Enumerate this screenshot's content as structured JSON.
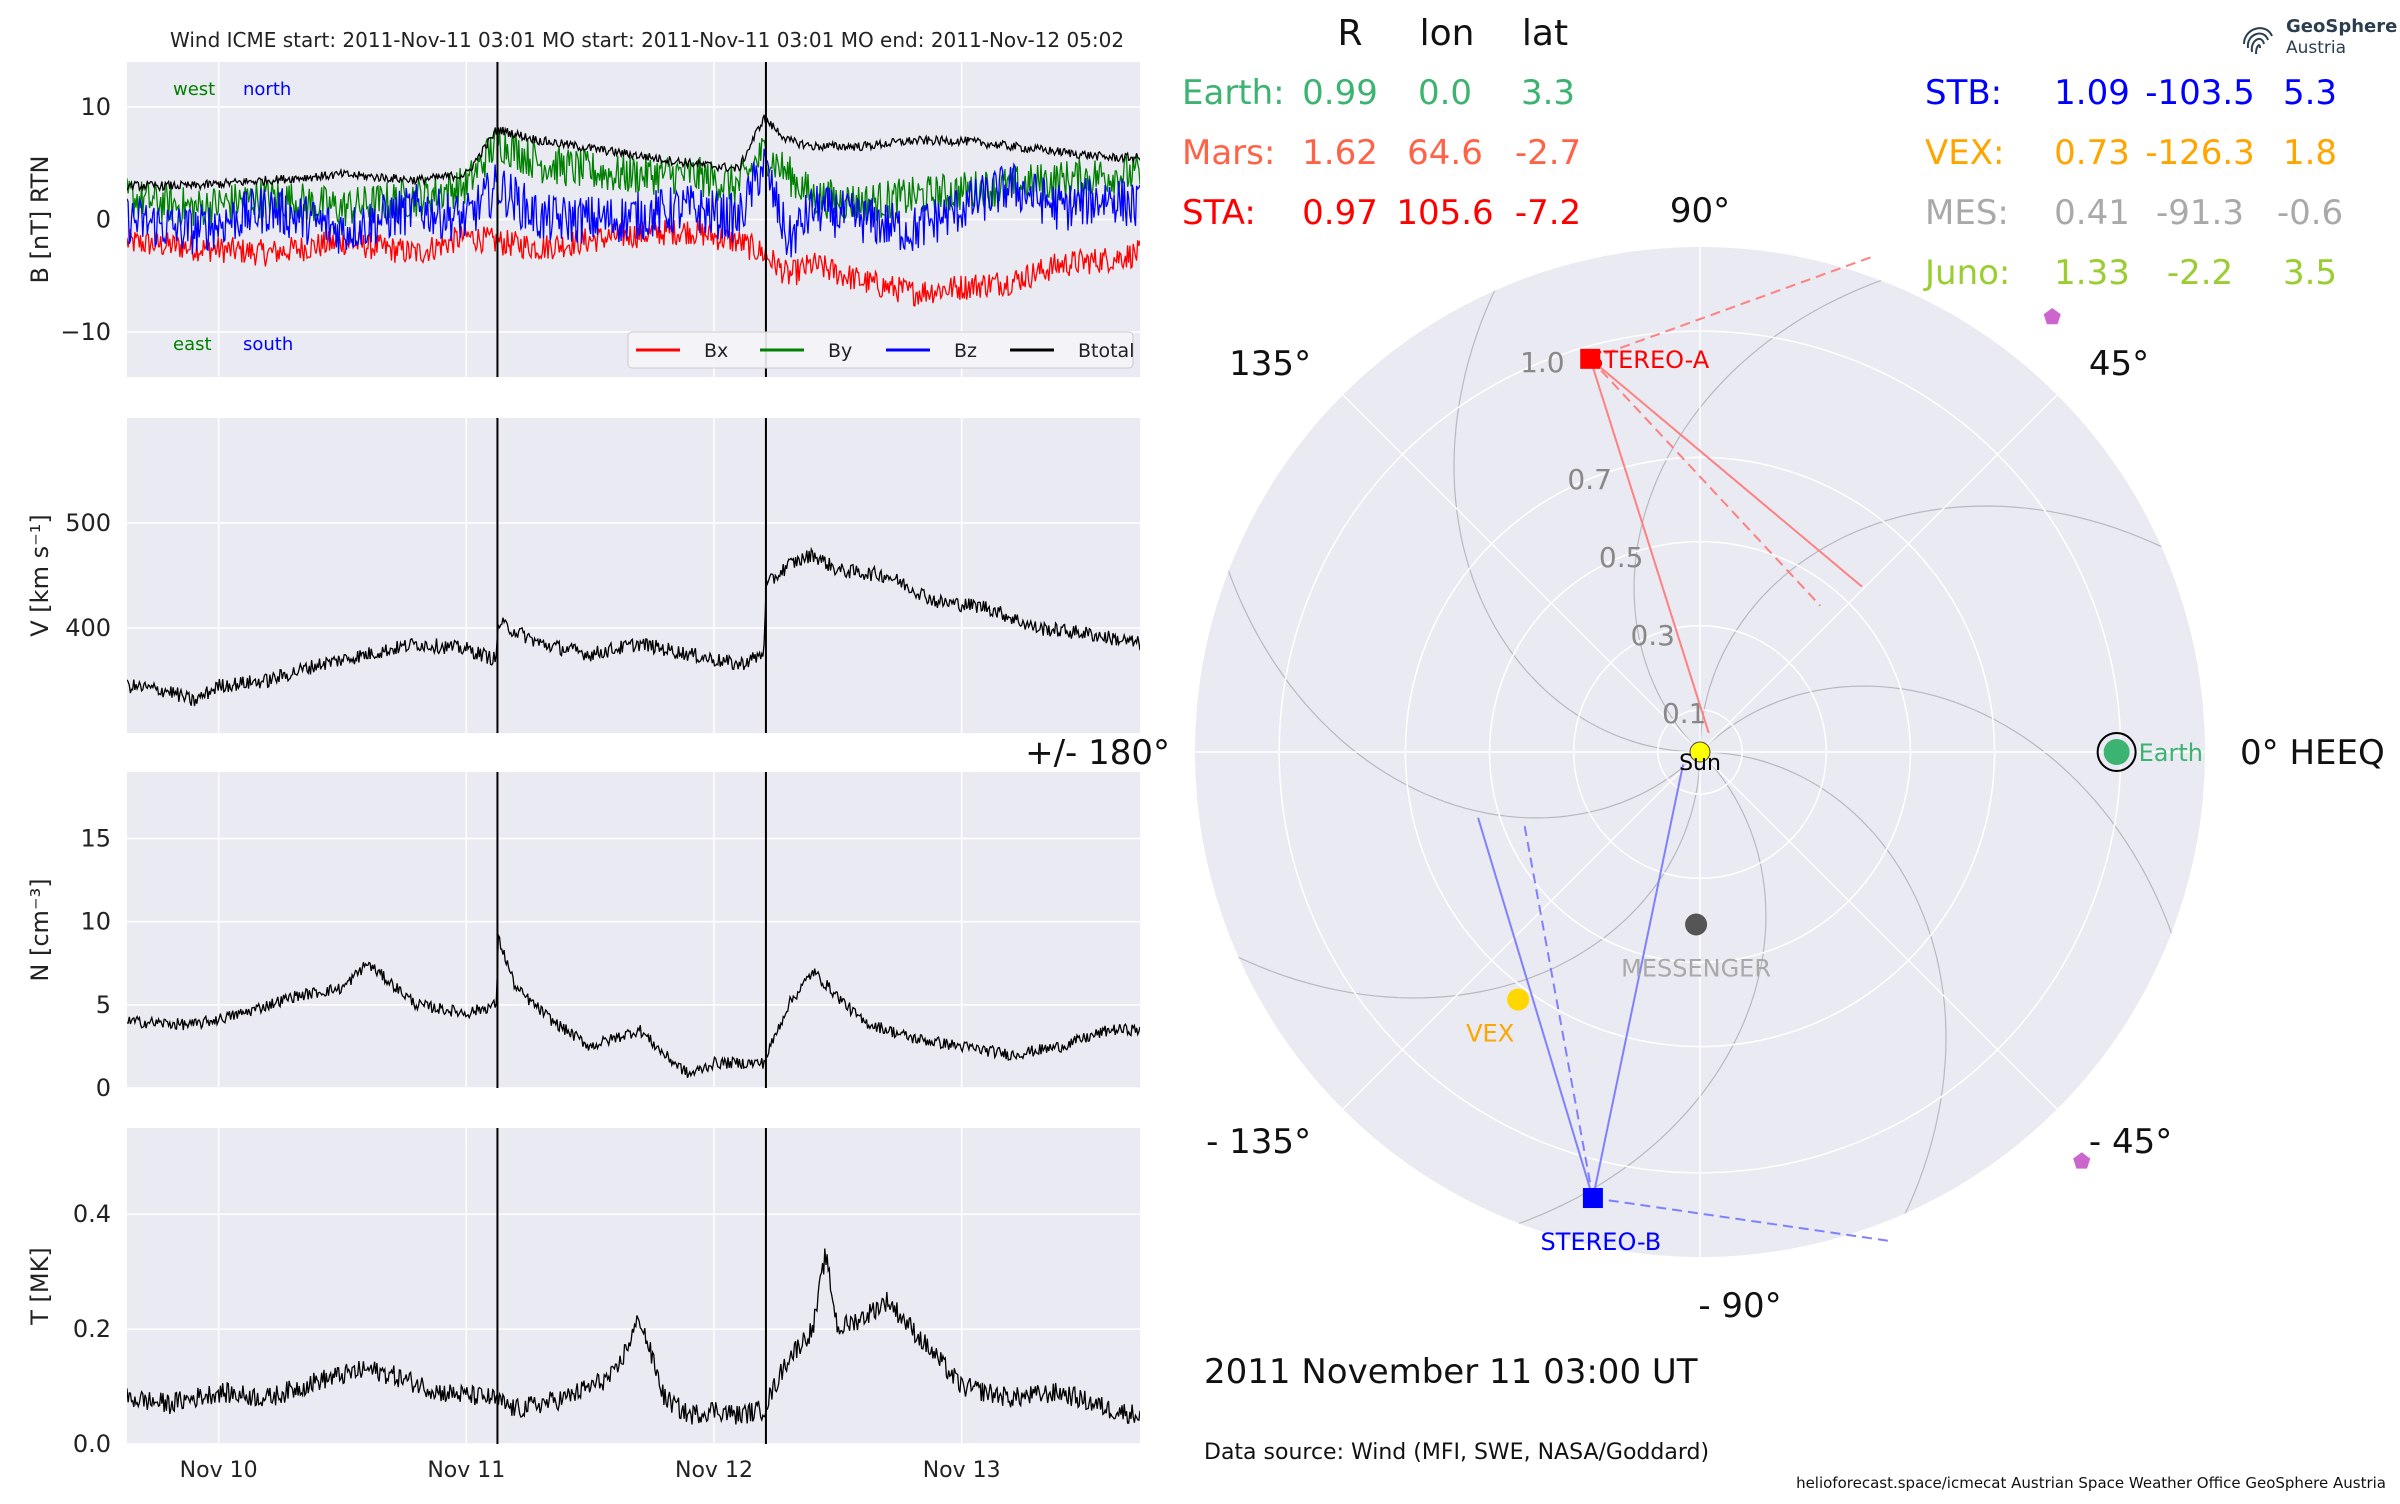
{
  "plot_title": "Wind    ICME start: 2011-Nov-11 03:01   MO start: 2011-Nov-11 03:01   MO end: 2011-Nov-12 05:02",
  "position_date": "2011 November 11  03:00 UT",
  "data_source": "Data source: Wind (MFI, SWE, NASA/Goddard)",
  "footer": "helioforecast.space/icmecat   Austrian Space Weather Office   GeoSphere Austria",
  "logo": {
    "name": "GeoSphere",
    "sub": "Austria",
    "icon": "geosphere-fingerprint-icon"
  },
  "colors": {
    "bx": "#ff0000",
    "by": "#008000",
    "bz": "#0000ff",
    "btotal": "#000000",
    "panel_bg": "#eaeaf2"
  },
  "chart_data": [
    {
      "type": "line",
      "ylabel": "B [nT] RTN",
      "ylim": [
        -14,
        14
      ],
      "yticks": [
        "10",
        "0",
        "−10"
      ],
      "yticks_values": [
        10,
        0,
        -10
      ],
      "annotations": {
        "west": "west",
        "north": "north",
        "east": "east",
        "south": "south"
      },
      "legend": {
        "position": "bottom-right",
        "entries": [
          "Bx",
          "By",
          "Bz",
          "Btotal"
        ]
      },
      "xlim_days": [
        9.63,
        13.72
      ],
      "event_lines": [
        "2011-11-11 03:01",
        "2011-11-12 05:02"
      ],
      "series": [
        {
          "name": "Bx",
          "x": [
            9.63,
            9.9,
            10.2,
            10.5,
            10.8,
            11.0,
            11.125,
            11.3,
            11.6,
            11.9,
            12.1,
            12.2,
            12.3,
            12.4,
            12.6,
            12.8,
            13.0,
            13.2,
            13.4,
            13.6,
            13.72
          ],
          "values": [
            -2,
            -2.5,
            -3,
            -2,
            -3,
            -1.5,
            -2,
            -2.5,
            -1.5,
            -1,
            -2,
            -3,
            -5,
            -4,
            -5.5,
            -6.5,
            -6,
            -5.5,
            -4,
            -3.5,
            -3
          ]
        },
        {
          "name": "By",
          "x": [
            9.63,
            9.9,
            10.2,
            10.5,
            10.8,
            11.0,
            11.125,
            11.3,
            11.6,
            11.9,
            12.1,
            12.2,
            12.3,
            12.4,
            12.6,
            12.8,
            13.0,
            13.2,
            13.4,
            13.6,
            13.72
          ],
          "values": [
            2,
            1,
            2,
            1,
            2,
            3,
            7,
            5,
            4,
            4,
            3,
            6,
            4,
            2,
            1.5,
            2,
            2.5,
            3,
            3.5,
            4,
            4
          ]
        },
        {
          "name": "Bz",
          "x": [
            9.63,
            9.9,
            10.2,
            10.5,
            10.8,
            11.0,
            11.125,
            11.3,
            11.6,
            11.9,
            12.1,
            12.2,
            12.3,
            12.4,
            12.6,
            12.8,
            13.0,
            13.2,
            13.4,
            13.6,
            13.72
          ],
          "values": [
            0,
            -1,
            1,
            -1,
            1,
            0,
            3,
            0,
            0,
            1,
            0,
            5,
            -2,
            1,
            0,
            -1,
            1,
            3,
            1,
            2,
            1
          ]
        },
        {
          "name": "Btotal",
          "x": [
            9.63,
            9.9,
            10.2,
            10.5,
            10.8,
            11.0,
            11.125,
            11.3,
            11.6,
            11.9,
            12.1,
            12.2,
            12.3,
            12.4,
            12.6,
            12.8,
            13.0,
            13.2,
            13.4,
            13.6,
            13.72
          ],
          "values": [
            3,
            3,
            3.5,
            4,
            3.5,
            4,
            8,
            7,
            6,
            5,
            4.5,
            9,
            7,
            6.5,
            6.5,
            7,
            7,
            6.5,
            6,
            5.5,
            5.5
          ]
        }
      ]
    },
    {
      "type": "line",
      "ylabel": "V [km s⁻¹]",
      "ylim": [
        300,
        600
      ],
      "yticks": [
        "500",
        "400"
      ],
      "yticks_values": [
        500,
        400
      ],
      "series": [
        {
          "name": "V",
          "x": [
            9.63,
            9.8,
            9.9,
            10.0,
            10.2,
            10.4,
            10.6,
            10.8,
            11.0,
            11.12,
            11.13,
            11.3,
            11.5,
            11.7,
            11.9,
            12.1,
            12.2,
            12.21,
            12.3,
            12.4,
            12.5,
            12.7,
            12.9,
            13.1,
            13.3,
            13.5,
            13.72
          ],
          "values": [
            345,
            340,
            330,
            345,
            350,
            365,
            375,
            385,
            380,
            370,
            405,
            385,
            375,
            385,
            375,
            365,
            375,
            440,
            460,
            470,
            455,
            450,
            425,
            420,
            400,
            395,
            385
          ]
        }
      ]
    },
    {
      "type": "line",
      "ylabel": "N [cm⁻³]",
      "ylim": [
        0,
        19
      ],
      "yticks": [
        "15",
        "10",
        "5",
        "0"
      ],
      "yticks_values": [
        15,
        10,
        5,
        0
      ],
      "series": [
        {
          "name": "N",
          "x": [
            9.63,
            9.9,
            10.1,
            10.3,
            10.5,
            10.6,
            10.8,
            11.0,
            11.12,
            11.13,
            11.2,
            11.35,
            11.5,
            11.7,
            11.8,
            11.9,
            12.0,
            12.1,
            12.2,
            12.3,
            12.4,
            12.6,
            12.8,
            13.0,
            13.2,
            13.4,
            13.6,
            13.72
          ],
          "values": [
            4,
            3.8,
            4.5,
            5.5,
            6,
            7.5,
            5,
            4.5,
            5,
            9,
            6,
            4,
            2.5,
            3.5,
            2,
            0.8,
            1.5,
            1.5,
            1.5,
            5,
            7,
            4,
            3,
            2.5,
            2,
            2.5,
            3.5,
            3.5
          ]
        }
      ]
    },
    {
      "type": "line",
      "ylabel": "T [MK]",
      "ylim": [
        0,
        0.55
      ],
      "yticks": [
        "0.4",
        "0.2",
        "0.0"
      ],
      "yticks_values": [
        0.4,
        0.2,
        0.0
      ],
      "xticks": [
        "Nov 10",
        "Nov 11",
        "Nov 12",
        "Nov 13"
      ],
      "xticks_values": [
        10,
        11,
        12,
        13
      ],
      "series": [
        {
          "name": "T",
          "x": [
            9.63,
            9.8,
            10.0,
            10.2,
            10.4,
            10.6,
            10.7,
            10.9,
            11.1,
            11.2,
            11.4,
            11.6,
            11.7,
            11.75,
            11.8,
            11.9,
            12.0,
            12.1,
            12.2,
            12.3,
            12.4,
            12.45,
            12.5,
            12.6,
            12.7,
            12.8,
            13.0,
            13.2,
            13.4,
            13.6,
            13.72
          ],
          "values": [
            0.08,
            0.07,
            0.09,
            0.08,
            0.11,
            0.13,
            0.12,
            0.09,
            0.08,
            0.06,
            0.08,
            0.12,
            0.22,
            0.15,
            0.08,
            0.05,
            0.06,
            0.05,
            0.06,
            0.15,
            0.2,
            0.33,
            0.2,
            0.22,
            0.25,
            0.2,
            0.1,
            0.08,
            0.09,
            0.06,
            0.05
          ]
        }
      ]
    },
    {
      "type": "scatter",
      "subtype": "polar",
      "header": {
        "r": "R",
        "lon": "lon",
        "lat": "lat"
      },
      "angle_labels": [
        {
          "angle": 0,
          "text": "0° HEEQ"
        },
        {
          "angle": 45,
          "text": "45°"
        },
        {
          "angle": 90,
          "text": "90°"
        },
        {
          "angle": 135,
          "text": "135°"
        },
        {
          "angle": 180,
          "text": "+/- 180°"
        },
        {
          "angle": -135,
          "text": "- 135°"
        },
        {
          "angle": -90,
          "text": "- 90°"
        },
        {
          "angle": -45,
          "text": "- 45°"
        }
      ],
      "radial_ticks": [
        "0.1",
        "0.3",
        "0.5",
        "0.7",
        "1.0"
      ],
      "radial_tick_values": [
        0.1,
        0.3,
        0.5,
        0.7,
        1.0
      ],
      "rmax": 1.2,
      "sun_label": "Sun",
      "bodies": [
        {
          "name": "Earth",
          "label": "Earth",
          "r": 0.99,
          "lon": 0.0,
          "color": "#3cb371",
          "marker": "circle"
        },
        {
          "name": "STEREO-A",
          "label": "STEREO-A",
          "r": 0.97,
          "lon": 105.6,
          "color": "#ff0000",
          "marker": "square"
        },
        {
          "name": "STEREO-B",
          "label": "STEREO-B",
          "r": 1.09,
          "lon": -103.5,
          "color": "#0000ff",
          "marker": "square"
        },
        {
          "name": "VEX",
          "label": "VEX",
          "r": 0.73,
          "lon": -126.3,
          "color": "#ffd700",
          "marker": "circle"
        },
        {
          "name": "MESSENGER",
          "label": "MESSENGER",
          "r": 0.41,
          "lon": -91.3,
          "color": "#555555",
          "marker": "circle"
        },
        {
          "name": "Juno-1",
          "label": "",
          "r": 1.33,
          "lon": 51,
          "color": "#cc66cc",
          "marker": "pentagon"
        },
        {
          "name": "Juno-2",
          "label": "",
          "r": 1.33,
          "lon": -47,
          "color": "#cc66cc",
          "marker": "pentagon"
        }
      ],
      "table": [
        {
          "name": "Earth:",
          "r": "0.99",
          "lon": "0.0",
          "lat": "3.3",
          "color": "#3cb371"
        },
        {
          "name": "Mars:",
          "r": "1.62",
          "lon": "64.6",
          "lat": "-2.7",
          "color": "#ff6347"
        },
        {
          "name": "STA:",
          "r": "0.97",
          "lon": "105.6",
          "lat": "-7.2",
          "color": "#ff0000"
        }
      ],
      "table_right": [
        {
          "name": "STB:",
          "r": "1.09",
          "lon": "-103.5",
          "lat": "5.3",
          "color": "#0000ff"
        },
        {
          "name": "VEX:",
          "r": "0.73",
          "lon": "-126.3",
          "lat": "1.8",
          "color": "#ffa500"
        },
        {
          "name": "MES:",
          "r": "0.41",
          "lon": "-91.3",
          "lat": "-0.6",
          "color": "#a9a9a9"
        },
        {
          "name": "Juno:",
          "r": "1.33",
          "lon": "-2.2",
          "lat": "3.5",
          "color": "#9acd32"
        }
      ]
    }
  ]
}
